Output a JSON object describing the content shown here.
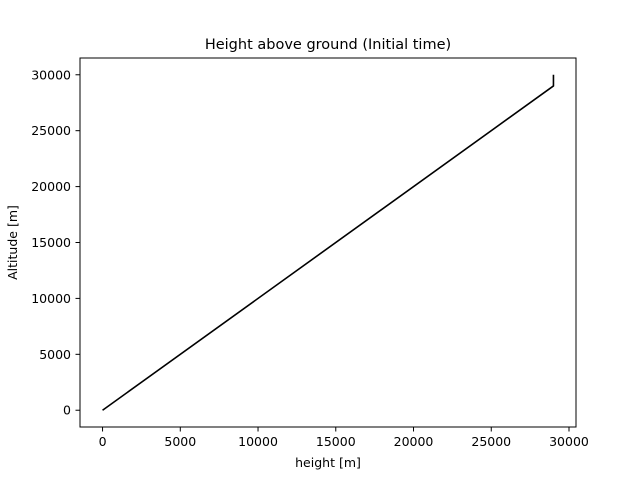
{
  "chart_data": {
    "type": "line",
    "title": "Height above ground (Initial time)",
    "xlabel": "height [m]",
    "ylabel": "Altitude [m]",
    "xlim": [
      -1450,
      30450
    ],
    "ylim": [
      -1500,
      31500
    ],
    "xticks": [
      0,
      5000,
      10000,
      15000,
      20000,
      25000,
      30000
    ],
    "yticks": [
      0,
      5000,
      10000,
      15000,
      20000,
      25000,
      30000
    ],
    "grid": false,
    "series": [
      {
        "color": "#000000",
        "x": [
          0,
          29000,
          29000
        ],
        "y": [
          0,
          29000,
          30000
        ]
      }
    ]
  }
}
